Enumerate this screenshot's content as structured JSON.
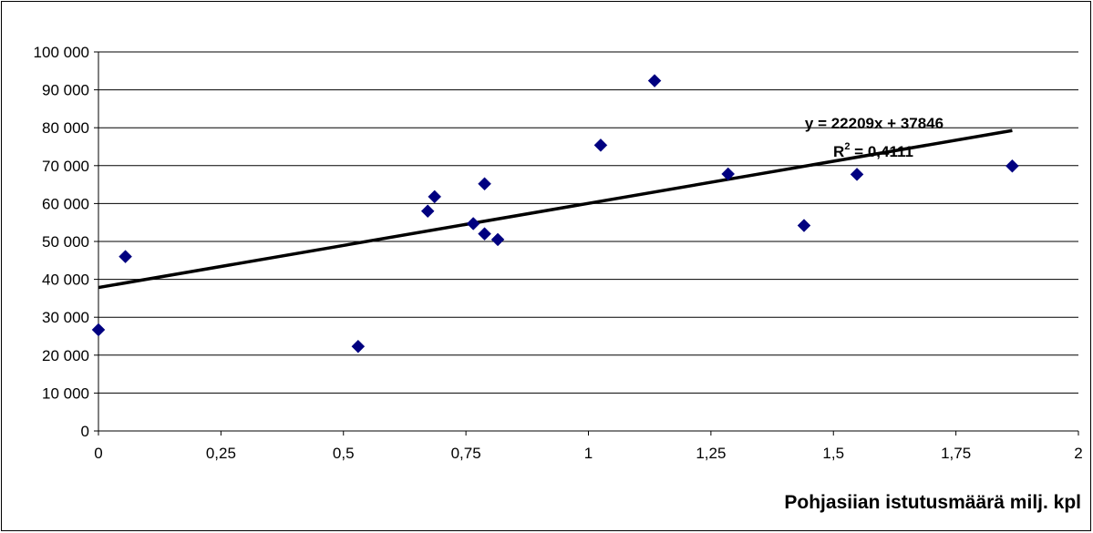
{
  "chart_data": {
    "type": "scatter",
    "title": "",
    "xlabel": "Pohjasiian istutusmäärä milj. kpl",
    "ylabel": "",
    "xlim": [
      0,
      2
    ],
    "ylim": [
      0,
      100000
    ],
    "x_ticks": [
      0,
      0.25,
      0.5,
      0.75,
      1,
      1.25,
      1.5,
      1.75,
      2
    ],
    "x_tick_labels": [
      "0",
      "0,25",
      "0,5",
      "0,75",
      "1",
      "1,25",
      "1,5",
      "1,75",
      "2"
    ],
    "y_ticks": [
      0,
      10000,
      20000,
      30000,
      40000,
      50000,
      60000,
      70000,
      80000,
      90000,
      100000
    ],
    "y_tick_labels": [
      "0",
      "10 000",
      "20 000",
      "30 000",
      "40 000",
      "50 000",
      "60 000",
      "70 000",
      "80 000",
      "90 000",
      "100 000"
    ],
    "grid": "horizontal",
    "marker": "diamond",
    "marker_color": "#000080",
    "points": [
      {
        "x": 0.0,
        "y": 26700
      },
      {
        "x": 0.055,
        "y": 46000
      },
      {
        "x": 0.53,
        "y": 22300
      },
      {
        "x": 0.672,
        "y": 58000
      },
      {
        "x": 0.686,
        "y": 61800
      },
      {
        "x": 0.765,
        "y": 54700
      },
      {
        "x": 0.788,
        "y": 65200
      },
      {
        "x": 0.788,
        "y": 52000
      },
      {
        "x": 0.815,
        "y": 50500
      },
      {
        "x": 1.025,
        "y": 75400
      },
      {
        "x": 1.135,
        "y": 92400
      },
      {
        "x": 1.285,
        "y": 67800
      },
      {
        "x": 1.44,
        "y": 54200
      },
      {
        "x": 1.548,
        "y": 67700
      },
      {
        "x": 1.865,
        "y": 69900
      }
    ],
    "trendline": {
      "slope": 22209,
      "intercept": 37846,
      "x_range": [
        0,
        1.865
      ],
      "color": "#000000"
    },
    "annotations": {
      "equation": "y = 22209x + 37846",
      "r2_prefix": "R",
      "r2_exponent": "2",
      "r2_value": " = 0,4111"
    }
  }
}
